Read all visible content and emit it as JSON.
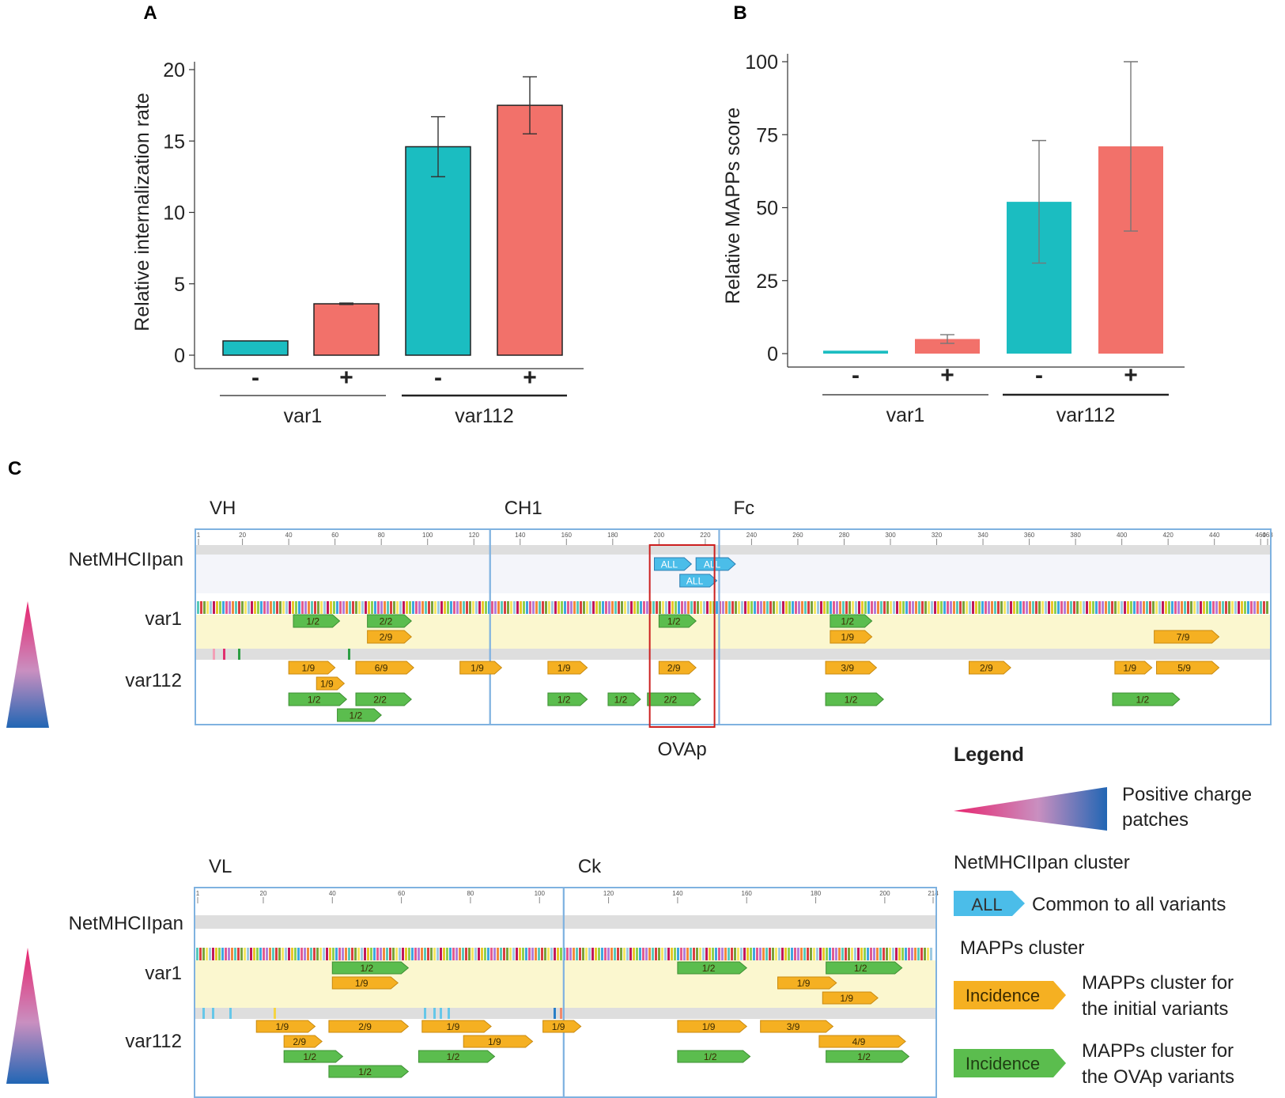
{
  "chart_data": [
    {
      "panel": "A",
      "type": "bar",
      "categories": [
        "-",
        "+",
        "-",
        "+"
      ],
      "groups": [
        {
          "name": "var1",
          "categories": [
            0,
            1
          ]
        },
        {
          "name": "var112",
          "categories": [
            2,
            3
          ]
        }
      ],
      "values": [
        1.0,
        3.6,
        14.6,
        17.5
      ],
      "errors": [
        0.0,
        0.05,
        2.1,
        2.0
      ],
      "bar_colors": [
        "#1bbdc1",
        "#f2716a",
        "#1bbdc1",
        "#f2716a"
      ],
      "ylabel": "Relative internalization rate",
      "xlabel": "",
      "ylim": [
        0,
        20
      ],
      "yticks": [
        0,
        5,
        10,
        15,
        20
      ]
    },
    {
      "panel": "B",
      "type": "bar",
      "categories": [
        "-",
        "+",
        "-",
        "+"
      ],
      "groups": [
        {
          "name": "var1",
          "categories": [
            0,
            1
          ]
        },
        {
          "name": "var112",
          "categories": [
            2,
            3
          ]
        }
      ],
      "values": [
        1,
        5,
        52,
        71
      ],
      "errors": [
        0,
        1.5,
        21,
        29
      ],
      "bar_colors": [
        "#1bbdc1",
        "#f2716a",
        "#1bbdc1",
        "#f2716a"
      ],
      "ylabel": "Relative MAPPs score",
      "xlabel": "",
      "ylim": [
        0,
        100
      ],
      "yticks": [
        0,
        25,
        50,
        75,
        100
      ]
    },
    {
      "panel": "C",
      "type": "table",
      "maps": [
        {
          "name": "heavy",
          "length": 463,
          "ruler_ticks": [
            1,
            20,
            40,
            60,
            80,
            100,
            120,
            140,
            160,
            180,
            200,
            220,
            240,
            260,
            280,
            300,
            320,
            340,
            360,
            380,
            400,
            420,
            440,
            460,
            463
          ],
          "domains": [
            {
              "label": "VH",
              "start": 1,
              "end": 127
            },
            {
              "label": "CH1",
              "start": 127,
              "end": 226
            },
            {
              "label": "Fc",
              "start": 226,
              "end": 463
            }
          ],
          "highlight": {
            "label": "OVAp",
            "start": 196,
            "end": 224
          },
          "rows": [
            "NetMHCIIpan",
            "var1",
            "var112"
          ],
          "netmhc": [
            {
              "text": "ALL",
              "start": 198,
              "end": 214,
              "lane": 0
            },
            {
              "text": "ALL",
              "start": 216,
              "end": 233,
              "lane": 0
            },
            {
              "text": "ALL",
              "start": 209,
              "end": 225,
              "lane": 1
            }
          ],
          "var1": [
            {
              "text": "1/2",
              "color": "green",
              "start": 42,
              "end": 62,
              "lane": 0
            },
            {
              "text": "2/2",
              "color": "green",
              "start": 74,
              "end": 93,
              "lane": 0
            },
            {
              "text": "1/2",
              "color": "green",
              "start": 200,
              "end": 216,
              "lane": 0
            },
            {
              "text": "1/2",
              "color": "green",
              "start": 274,
              "end": 292,
              "lane": 0
            },
            {
              "text": "2/9",
              "color": "orange",
              "start": 74,
              "end": 93,
              "lane": 1
            },
            {
              "text": "1/9",
              "color": "orange",
              "start": 274,
              "end": 292,
              "lane": 1
            },
            {
              "text": "7/9",
              "color": "orange",
              "start": 414,
              "end": 442,
              "lane": 1
            }
          ],
          "var112": [
            {
              "text": "1/9",
              "color": "orange",
              "start": 40,
              "end": 60,
              "lane": 0
            },
            {
              "text": "6/9",
              "color": "orange",
              "start": 69,
              "end": 94,
              "lane": 0
            },
            {
              "text": "1/9",
              "color": "orange",
              "start": 114,
              "end": 132,
              "lane": 0
            },
            {
              "text": "1/9",
              "color": "orange",
              "start": 152,
              "end": 169,
              "lane": 0
            },
            {
              "text": "2/9",
              "color": "orange",
              "start": 200,
              "end": 216,
              "lane": 0
            },
            {
              "text": "3/9",
              "color": "orange",
              "start": 272,
              "end": 294,
              "lane": 0
            },
            {
              "text": "2/9",
              "color": "orange",
              "start": 334,
              "end": 352,
              "lane": 0
            },
            {
              "text": "1/9",
              "color": "orange",
              "start": 397,
              "end": 413,
              "lane": 0
            },
            {
              "text": "5/9",
              "color": "orange",
              "start": 415,
              "end": 442,
              "lane": 0
            },
            {
              "text": "1/9",
              "color": "orange",
              "start": 52,
              "end": 64,
              "lane": 1
            },
            {
              "text": "1/2",
              "color": "green",
              "start": 40,
              "end": 65,
              "lane": 2
            },
            {
              "text": "2/2",
              "color": "green",
              "start": 69,
              "end": 93,
              "lane": 2
            },
            {
              "text": "1/2",
              "color": "green",
              "start": 152,
              "end": 169,
              "lane": 2
            },
            {
              "text": "1/2",
              "color": "green",
              "start": 178,
              "end": 192,
              "lane": 2
            },
            {
              "text": "2/2",
              "color": "green",
              "start": 195,
              "end": 218,
              "lane": 2
            },
            {
              "text": "1/2",
              "color": "green",
              "start": 272,
              "end": 297,
              "lane": 2
            },
            {
              "text": "1/2",
              "color": "green",
              "start": 396,
              "end": 425,
              "lane": 2
            },
            {
              "text": "1/2",
              "color": "green",
              "start": 61,
              "end": 80,
              "lane": 3
            }
          ]
        },
        {
          "name": "light",
          "length": 214,
          "ruler_ticks": [
            1,
            20,
            40,
            60,
            80,
            100,
            120,
            140,
            160,
            180,
            200,
            214
          ],
          "domains": [
            {
              "label": "VL",
              "start": 1,
              "end": 107
            },
            {
              "label": "Ck",
              "start": 107,
              "end": 214
            }
          ],
          "rows": [
            "NetMHCIIpan",
            "var1",
            "var112"
          ],
          "netmhc": [],
          "var1": [
            {
              "text": "1/2",
              "color": "green",
              "start": 40,
              "end": 62,
              "lane": 0
            },
            {
              "text": "1/2",
              "color": "green",
              "start": 140,
              "end": 160,
              "lane": 0
            },
            {
              "text": "1/2",
              "color": "green",
              "start": 183,
              "end": 205,
              "lane": 0
            },
            {
              "text": "1/9",
              "color": "orange",
              "start": 40,
              "end": 59,
              "lane": 1
            },
            {
              "text": "1/9",
              "color": "orange",
              "start": 169,
              "end": 186,
              "lane": 1
            },
            {
              "text": "1/9",
              "color": "orange",
              "start": 182,
              "end": 198,
              "lane": 2
            }
          ],
          "var112": [
            {
              "text": "1/9",
              "color": "orange",
              "start": 18,
              "end": 35,
              "lane": 0
            },
            {
              "text": "2/9",
              "color": "orange",
              "start": 39,
              "end": 62,
              "lane": 0
            },
            {
              "text": "1/9",
              "color": "orange",
              "start": 66,
              "end": 86,
              "lane": 0
            },
            {
              "text": "1/9",
              "color": "orange",
              "start": 101,
              "end": 112,
              "lane": 0
            },
            {
              "text": "1/9",
              "color": "orange",
              "start": 140,
              "end": 160,
              "lane": 0
            },
            {
              "text": "3/9",
              "color": "orange",
              "start": 164,
              "end": 185,
              "lane": 0
            },
            {
              "text": "2/9",
              "color": "orange",
              "start": 26,
              "end": 37,
              "lane": 1
            },
            {
              "text": "1/9",
              "color": "orange",
              "start": 78,
              "end": 98,
              "lane": 1
            },
            {
              "text": "4/9",
              "color": "orange",
              "start": 181,
              "end": 206,
              "lane": 1
            },
            {
              "text": "1/2",
              "color": "green",
              "start": 26,
              "end": 43,
              "lane": 2
            },
            {
              "text": "1/2",
              "color": "green",
              "start": 65,
              "end": 87,
              "lane": 2
            },
            {
              "text": "1/2",
              "color": "green",
              "start": 140,
              "end": 161,
              "lane": 2
            },
            {
              "text": "1/2",
              "color": "green",
              "start": 183,
              "end": 207,
              "lane": 2
            },
            {
              "text": "1/2",
              "color": "green",
              "start": 39,
              "end": 62,
              "lane": 3
            }
          ]
        }
      ],
      "legend": {
        "title": "Legend",
        "charge": "Positive charge patches",
        "netmhc_heading": "NetMHCIIpan cluster",
        "netmhc_tag": "ALL",
        "netmhc_desc": "Common to all variants",
        "mapps_heading": "MAPPs cluster",
        "initial_tag": "Incidence",
        "initial_desc": "MAPPs cluster for the initial variants",
        "ovap_tag": "Incidence",
        "ovap_desc": "MAPPs cluster for the OVAp variants"
      }
    }
  ],
  "colors": {
    "teal": "#1bbdc1",
    "salmon": "#f2716a",
    "orange": "#f5b022",
    "green": "#5bbd4e",
    "blue": "#4bbde9",
    "frame": "#7fb2e0",
    "highlight": "#cc1f1f"
  }
}
